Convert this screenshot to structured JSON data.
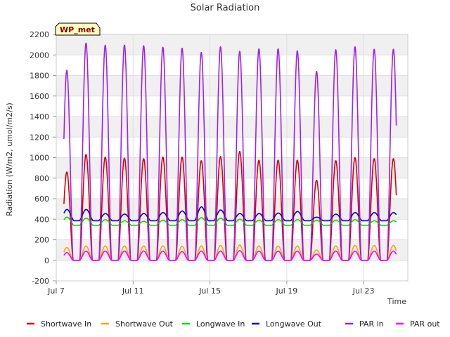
{
  "chart_data": {
    "type": "line",
    "title": "Solar Radiation",
    "badge": "WP_met",
    "xlabel": "Time",
    "ylabel": "Radiation (W/m2, umol/m2/s)",
    "xlim": [
      7.0,
      25.3
    ],
    "ylim": [
      -200,
      2200
    ],
    "yticks": [
      -200,
      0,
      200,
      400,
      600,
      800,
      1000,
      1200,
      1400,
      1600,
      1800,
      2000,
      2200
    ],
    "xticks": [
      {
        "value": 7,
        "label": "Jul 7"
      },
      {
        "value": 11,
        "label": "Jul 11"
      },
      {
        "value": 15,
        "label": "Jul 15"
      },
      {
        "value": 19,
        "label": "Jul 19"
      },
      {
        "value": 23,
        "label": "Jul 23"
      }
    ],
    "grid": true,
    "legend_position": "bottom",
    "data_start_day": 7.4,
    "data_end_day": 24.7,
    "series": [
      {
        "name": "Shortwave In",
        "color": "#dd0000",
        "night": 0,
        "peaks": [
          860,
          1030,
          1005,
          995,
          990,
          1005,
          1005,
          970,
          1010,
          1060,
          975,
          975,
          975,
          780,
          970,
          1000,
          990
        ]
      },
      {
        "name": "Shortwave Out",
        "color": "#ffa500",
        "night": 0,
        "peaks": [
          125,
          140,
          140,
          140,
          140,
          140,
          135,
          140,
          145,
          150,
          140,
          140,
          140,
          100,
          140,
          145,
          145
        ]
      },
      {
        "name": "Longwave In",
        "color": "#00dd00",
        "night": 340,
        "peaks": [
          420,
          410,
          395,
          385,
          380,
          390,
          395,
          415,
          410,
          400,
          390,
          395,
          395,
          390,
          390,
          395,
          385
        ]
      },
      {
        "name": "Longwave Out",
        "color": "#0000cc",
        "night": 385,
        "peaks": [
          495,
          495,
          455,
          450,
          455,
          465,
          480,
          520,
          490,
          455,
          455,
          460,
          475,
          420,
          450,
          465,
          465
        ]
      },
      {
        "name": "PAR in",
        "color": "#a020f0",
        "night": 0,
        "peaks": [
          1850,
          2115,
          2095,
          2095,
          2090,
          2075,
          2065,
          2025,
          2080,
          2035,
          2060,
          2060,
          2040,
          1840,
          2050,
          2080,
          2055
        ]
      },
      {
        "name": "PAR out",
        "color": "#ff00ff",
        "night": 0,
        "peaks": [
          75,
          90,
          90,
          90,
          90,
          90,
          85,
          90,
          90,
          95,
          90,
          90,
          90,
          60,
          90,
          90,
          90
        ]
      }
    ]
  }
}
